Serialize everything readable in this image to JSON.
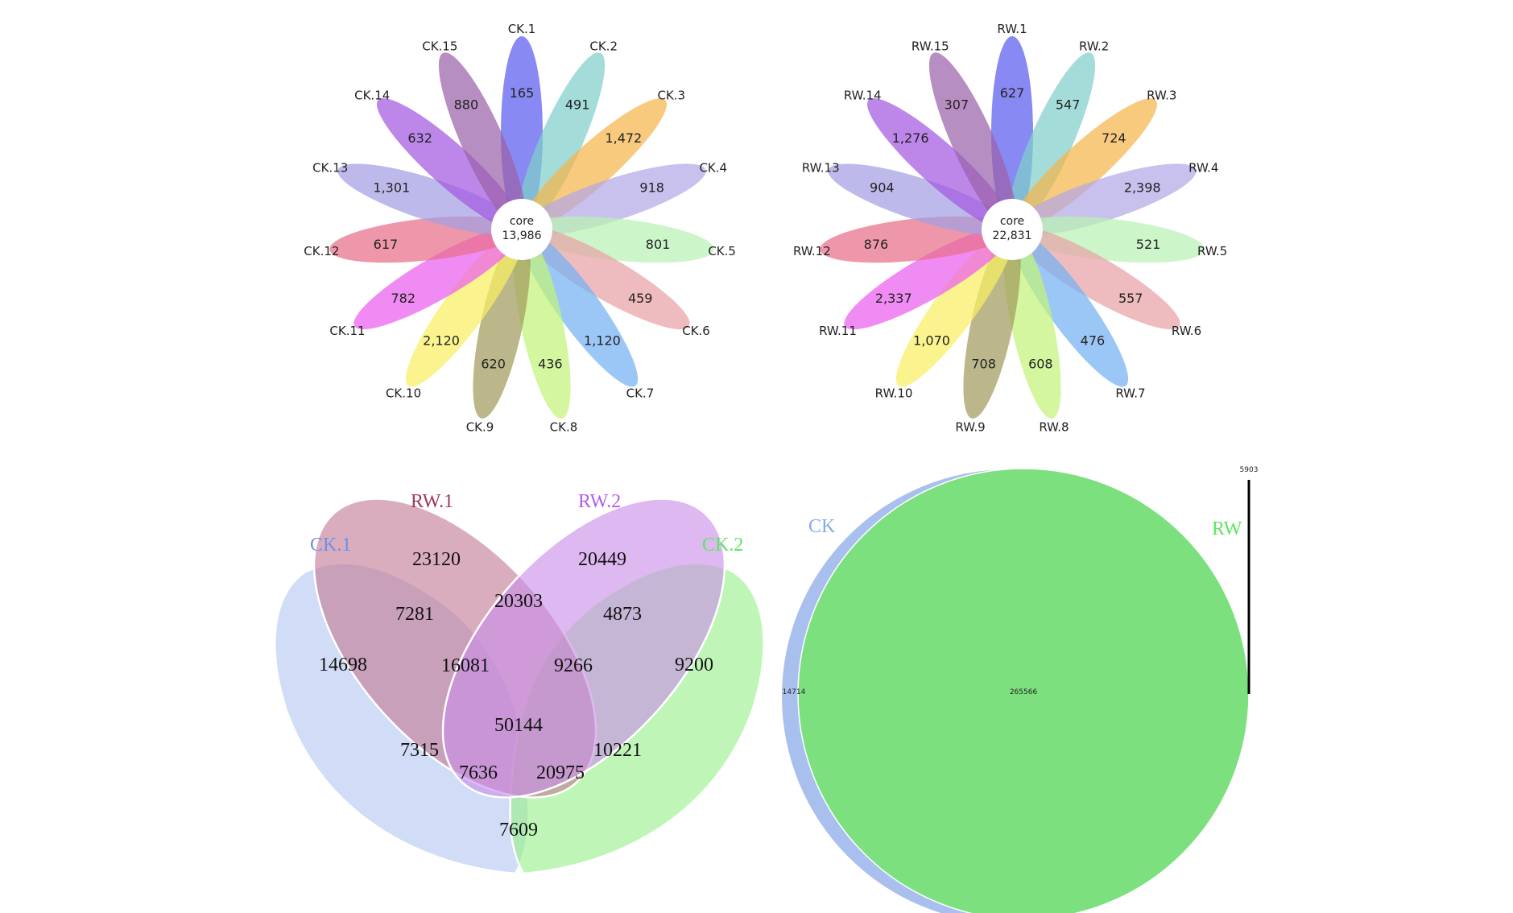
{
  "flower_ck": {
    "core_label": "core",
    "core_value": "13,986",
    "petals": [
      {
        "label": "CK.1",
        "value": "165",
        "color": "#5b5cf0"
      },
      {
        "label": "CK.2",
        "value": "491",
        "color": "#7fcfc9"
      },
      {
        "label": "CK.3",
        "value": "1,472",
        "color": "#f5b64c"
      },
      {
        "label": "CK.4",
        "value": "918",
        "color": "#b3a8e6"
      },
      {
        "label": "CK.5",
        "value": "801",
        "color": "#b9f2b4"
      },
      {
        "label": "CK.6",
        "value": "459",
        "color": "#e8a2a6"
      },
      {
        "label": "CK.7",
        "value": "1,120",
        "color": "#74b2f2"
      },
      {
        "label": "CK.8",
        "value": "436",
        "color": "#c2f27a"
      },
      {
        "label": "CK.9",
        "value": "620",
        "color": "#a19b5d"
      },
      {
        "label": "CK.10",
        "value": "2,120",
        "color": "#f9f062"
      },
      {
        "label": "CK.11",
        "value": "782",
        "color": "#ec5ef0"
      },
      {
        "label": "CK.12",
        "value": "617",
        "color": "#e76f89"
      },
      {
        "label": "CK.13",
        "value": "1,301",
        "color": "#a3a0e3"
      },
      {
        "label": "CK.14",
        "value": "632",
        "color": "#a259e0"
      },
      {
        "label": "CK.15",
        "value": "880",
        "color": "#9b62a9"
      }
    ]
  },
  "flower_rw": {
    "core_label": "core",
    "core_value": "22,831",
    "petals": [
      {
        "label": "RW.1",
        "value": "627",
        "color": "#5b5cf0"
      },
      {
        "label": "RW.2",
        "value": "547",
        "color": "#7fcfc9"
      },
      {
        "label": "RW.3",
        "value": "724",
        "color": "#f5b64c"
      },
      {
        "label": "RW.4",
        "value": "2,398",
        "color": "#b3a8e6"
      },
      {
        "label": "RW.5",
        "value": "521",
        "color": "#b9f2b4"
      },
      {
        "label": "RW.6",
        "value": "557",
        "color": "#e8a2a6"
      },
      {
        "label": "RW.7",
        "value": "476",
        "color": "#74b2f2"
      },
      {
        "label": "RW.8",
        "value": "608",
        "color": "#c2f27a"
      },
      {
        "label": "RW.9",
        "value": "708",
        "color": "#a19b5d"
      },
      {
        "label": "RW.10",
        "value": "1,070",
        "color": "#f9f062"
      },
      {
        "label": "RW.11",
        "value": "2,337",
        "color": "#ec5ef0"
      },
      {
        "label": "RW.12",
        "value": "876",
        "color": "#e76f89"
      },
      {
        "label": "RW.13",
        "value": "904",
        "color": "#a3a0e3"
      },
      {
        "label": "RW.14",
        "value": "1,276",
        "color": "#a259e0"
      },
      {
        "label": "RW.15",
        "value": "307",
        "color": "#9b62a9"
      }
    ]
  },
  "venn4": {
    "sets": [
      {
        "key": "ck1",
        "label": "CK.1",
        "color": "#6f8ee8",
        "fill": "#b4c6f0"
      },
      {
        "key": "rw1",
        "label": "RW.1",
        "color": "#a0385f",
        "fill": "#c27a94"
      },
      {
        "key": "rw2",
        "label": "RW.2",
        "color": "#b45ee8",
        "fill": "#c98ee8"
      },
      {
        "key": "ck2",
        "label": "CK.2",
        "color": "#5fe65f",
        "fill": "#98f08a"
      }
    ],
    "regions": [
      {
        "key": "ck1_only",
        "value": "14698"
      },
      {
        "key": "rw1_only",
        "value": "23120"
      },
      {
        "key": "rw2_only",
        "value": "20449"
      },
      {
        "key": "ck2_only",
        "value": "9200"
      },
      {
        "key": "ck1_rw1",
        "value": "7281"
      },
      {
        "key": "rw1_rw2",
        "value": "20303"
      },
      {
        "key": "rw2_ck2",
        "value": "4873"
      },
      {
        "key": "ck1_rw1_rw2",
        "value": "16081"
      },
      {
        "key": "rw1_rw2_ck2",
        "value": "9266"
      },
      {
        "key": "all",
        "value": "50144"
      },
      {
        "key": "ck1_rw2",
        "value": "7315"
      },
      {
        "key": "rw1_ck2",
        "value": "10221"
      },
      {
        "key": "ck1_rw2_ck2",
        "value": "7636"
      },
      {
        "key": "ck1_rw1_ck2",
        "value": "20975"
      },
      {
        "key": "ck1_ck2",
        "value": "7609"
      }
    ]
  },
  "venn2": {
    "set_a": {
      "label": "CK",
      "color": "#a9c0ef",
      "label_color": "#8aaae8"
    },
    "set_b": {
      "label": "RW",
      "color": "#7de07f",
      "label_color": "#5fe65f"
    },
    "a_only": "14714",
    "shared": "265566",
    "b_only": "5903"
  }
}
